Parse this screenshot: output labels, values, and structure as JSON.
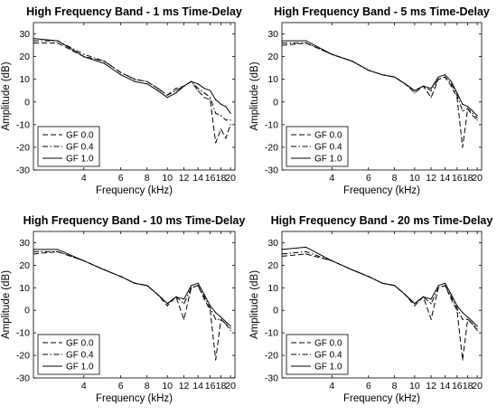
{
  "chart_data": [
    {
      "type": "line",
      "title": "High Frequency Band - 1 ms Time-Delay",
      "xlabel": "Frequency (kHz)",
      "ylabel": "Amplitude (dB)",
      "xscale": "log",
      "xlim": [
        2.3,
        21
      ],
      "ylim": [
        -30,
        35
      ],
      "xticks": [
        4,
        6,
        8,
        10,
        12,
        14,
        16,
        18,
        20
      ],
      "xtick_labels": [
        "4",
        "6",
        "8",
        "10",
        "12",
        "14",
        "16",
        "18",
        "20"
      ],
      "yticks": [
        -30,
        -20,
        -10,
        0,
        10,
        20,
        30
      ],
      "grid": false,
      "legend": "bottom-left",
      "series": [
        {
          "name": "GF 0.0",
          "style": "dashed",
          "x": [
            2.3,
            3,
            4,
            5,
            6,
            7,
            8,
            9,
            10,
            11,
            12,
            13,
            14,
            15,
            16,
            17,
            18,
            19,
            20
          ],
          "y": [
            26,
            26,
            20,
            18,
            13,
            10,
            9,
            6,
            3,
            6,
            7,
            9,
            5,
            2,
            1,
            -18,
            -12,
            -16,
            -10
          ]
        },
        {
          "name": "GF 0.4",
          "style": "dashdot",
          "x": [
            2.3,
            3,
            4,
            5,
            6,
            7,
            8,
            9,
            10,
            11,
            12,
            13,
            14,
            15,
            16,
            17,
            18,
            19,
            20
          ],
          "y": [
            27,
            27,
            21,
            18,
            13,
            10,
            9,
            6,
            3,
            5,
            7,
            9,
            6,
            4,
            2,
            -5,
            -6,
            -8,
            -8
          ]
        },
        {
          "name": "GF 1.0",
          "style": "solid",
          "x": [
            2.3,
            3,
            4,
            5,
            6,
            7,
            8,
            9,
            10,
            11,
            12,
            13,
            14,
            15,
            16,
            17,
            18,
            19,
            20
          ],
          "y": [
            28,
            27,
            20,
            17,
            12,
            9,
            8,
            5,
            2,
            4,
            7,
            9,
            8,
            6,
            5,
            1,
            -1,
            -2,
            -5
          ]
        }
      ]
    },
    {
      "type": "line",
      "title": "High Frequency Band - 5 ms Time-Delay",
      "xlabel": "Frequency (kHz)",
      "ylabel": "Amplitude (dB)",
      "xscale": "log",
      "xlim": [
        2.3,
        21
      ],
      "ylim": [
        -30,
        35
      ],
      "xticks": [
        4,
        6,
        8,
        10,
        12,
        14,
        16,
        18,
        20
      ],
      "xtick_labels": [
        "4",
        "6",
        "8",
        "10",
        "12",
        "14",
        "16",
        "18",
        "20"
      ],
      "yticks": [
        -30,
        -20,
        -10,
        0,
        10,
        20,
        30
      ],
      "grid": false,
      "legend": "bottom-left",
      "series": [
        {
          "name": "GF 0.0",
          "style": "dashed",
          "x": [
            2.3,
            3,
            4,
            5,
            6,
            7,
            8,
            9,
            10,
            11,
            12,
            13,
            14,
            15,
            16,
            17,
            18,
            19,
            20
          ],
          "y": [
            25,
            26,
            21,
            18,
            14,
            12,
            11,
            8,
            4,
            7,
            2,
            10,
            11,
            7,
            2,
            -20,
            -3,
            -6,
            -8
          ]
        },
        {
          "name": "GF 0.4",
          "style": "dashdot",
          "x": [
            2.3,
            3,
            4,
            5,
            6,
            7,
            8,
            9,
            10,
            11,
            12,
            13,
            14,
            15,
            16,
            17,
            18,
            19,
            20
          ],
          "y": [
            26,
            26,
            21,
            18,
            14,
            12,
            11,
            8,
            5,
            7,
            5,
            10,
            11,
            8,
            3,
            -4,
            -3,
            -5,
            -7
          ]
        },
        {
          "name": "GF 1.0",
          "style": "solid",
          "x": [
            2.3,
            3,
            4,
            5,
            6,
            7,
            8,
            9,
            10,
            11,
            12,
            13,
            14,
            15,
            16,
            17,
            18,
            19,
            20
          ],
          "y": [
            27,
            27,
            21,
            18,
            14,
            12,
            11,
            8,
            5,
            7,
            6,
            11,
            12,
            9,
            4,
            -1,
            -2,
            -4,
            -6
          ]
        }
      ]
    },
    {
      "type": "line",
      "title": "High Frequency Band - 10 ms Time-Delay",
      "xlabel": "Frequency (kHz)",
      "ylabel": "Amplitude (dB)",
      "xscale": "log",
      "xlim": [
        2.3,
        21
      ],
      "ylim": [
        -30,
        35
      ],
      "xticks": [
        4,
        6,
        8,
        10,
        12,
        14,
        16,
        18,
        20
      ],
      "xtick_labels": [
        "4",
        "6",
        "8",
        "10",
        "12",
        "14",
        "16",
        "18",
        "20"
      ],
      "yticks": [
        -30,
        -20,
        -10,
        0,
        10,
        20,
        30
      ],
      "grid": false,
      "legend": "bottom-left",
      "series": [
        {
          "name": "GF 0.0",
          "style": "dashed",
          "x": [
            2.3,
            3,
            4,
            5,
            6,
            7,
            8,
            9,
            10,
            11,
            12,
            13,
            14,
            15,
            16,
            17,
            18,
            19,
            20
          ],
          "y": [
            25,
            26,
            22,
            18,
            15,
            12,
            11,
            7,
            2,
            6,
            -4,
            10,
            11,
            5,
            0,
            -22,
            -4,
            -6,
            -9
          ]
        },
        {
          "name": "GF 0.4",
          "style": "dashdot",
          "x": [
            2.3,
            3,
            4,
            5,
            6,
            7,
            8,
            9,
            10,
            11,
            12,
            13,
            14,
            15,
            16,
            17,
            18,
            19,
            20
          ],
          "y": [
            26,
            26,
            22,
            18,
            15,
            12,
            11,
            7,
            3,
            6,
            3,
            10,
            11,
            6,
            1,
            -4,
            -4,
            -6,
            -8
          ]
        },
        {
          "name": "GF 1.0",
          "style": "solid",
          "x": [
            2.3,
            3,
            4,
            5,
            6,
            7,
            8,
            9,
            10,
            11,
            12,
            13,
            14,
            15,
            16,
            17,
            18,
            19,
            20
          ],
          "y": [
            27,
            27,
            22,
            18,
            15,
            12,
            11,
            7,
            3,
            6,
            5,
            11,
            12,
            7,
            2,
            -1,
            -3,
            -5,
            -7
          ]
        }
      ]
    },
    {
      "type": "line",
      "title": "High Frequency Band - 20 ms Time-Delay",
      "xlabel": "Frequency (kHz)",
      "ylabel": "Amplitude (dB)",
      "xscale": "log",
      "xlim": [
        2.3,
        21
      ],
      "ylim": [
        -30,
        35
      ],
      "xticks": [
        4,
        6,
        8,
        10,
        12,
        14,
        16,
        18,
        20
      ],
      "xtick_labels": [
        "4",
        "6",
        "8",
        "10",
        "12",
        "14",
        "16",
        "18",
        "20"
      ],
      "yticks": [
        -30,
        -20,
        -10,
        0,
        10,
        20,
        30
      ],
      "grid": false,
      "legend": "bottom-left",
      "series": [
        {
          "name": "GF 0.0",
          "style": "dashed",
          "x": [
            2.3,
            3,
            4,
            5,
            6,
            7,
            8,
            9,
            10,
            11,
            12,
            13,
            14,
            15,
            16,
            17,
            18,
            19,
            20
          ],
          "y": [
            24,
            25,
            22,
            18,
            15,
            12,
            11,
            7,
            2,
            6,
            -4,
            10,
            11,
            5,
            0,
            -22,
            -4,
            -6,
            -9
          ]
        },
        {
          "name": "GF 0.4",
          "style": "dashdot",
          "x": [
            2.3,
            3,
            4,
            5,
            6,
            7,
            8,
            9,
            10,
            11,
            12,
            13,
            14,
            15,
            16,
            17,
            18,
            19,
            20
          ],
          "y": [
            25,
            26,
            22,
            18,
            15,
            12,
            11,
            7,
            3,
            6,
            3,
            10,
            11,
            6,
            1,
            -4,
            -4,
            -6,
            -8
          ]
        },
        {
          "name": "GF 1.0",
          "style": "solid",
          "x": [
            2.3,
            3,
            4,
            5,
            6,
            7,
            8,
            9,
            10,
            11,
            12,
            13,
            14,
            15,
            16,
            17,
            18,
            19,
            20
          ],
          "y": [
            27,
            28,
            22,
            18,
            15,
            12,
            11,
            7,
            3,
            6,
            5,
            11,
            12,
            7,
            2,
            -1,
            -3,
            -5,
            -7
          ]
        }
      ]
    }
  ]
}
